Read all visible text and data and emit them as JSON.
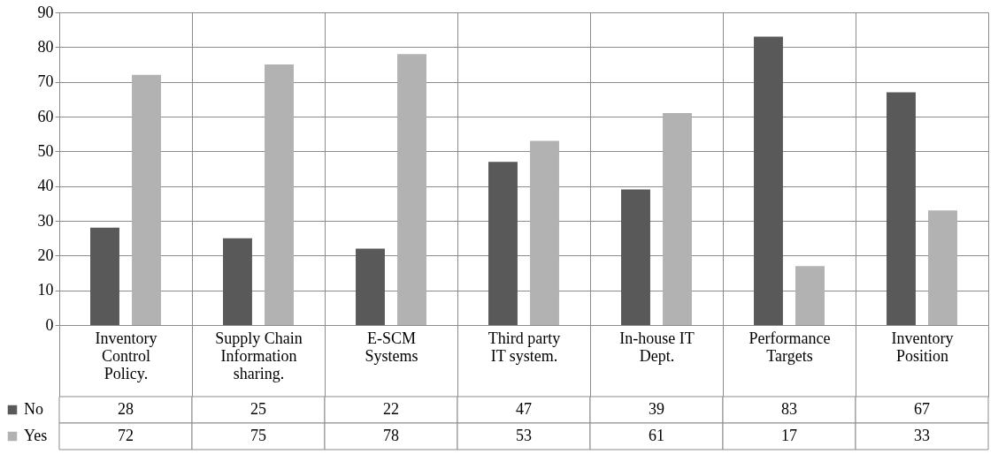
{
  "chart_data": {
    "type": "bar",
    "categories": [
      "Inventory Control Policy.",
      "Supply Chain Information sharing.",
      "E-SCM Systems",
      "Third party IT system.",
      "In-house IT Dept.",
      "Performance Targets",
      "Inventory Position"
    ],
    "series": [
      {
        "name": "No",
        "color": "#595959",
        "values": [
          28,
          25,
          22,
          47,
          39,
          83,
          67
        ]
      },
      {
        "name": "Yes",
        "color": "#b2b2b2",
        "values": [
          72,
          75,
          78,
          53,
          61,
          17,
          33
        ]
      }
    ],
    "ylim": [
      0,
      90
    ],
    "yticks": [
      0,
      10,
      20,
      30,
      40,
      50,
      60,
      70,
      80,
      90
    ],
    "grid": true,
    "legend": "bottom left",
    "data_labels": true
  }
}
